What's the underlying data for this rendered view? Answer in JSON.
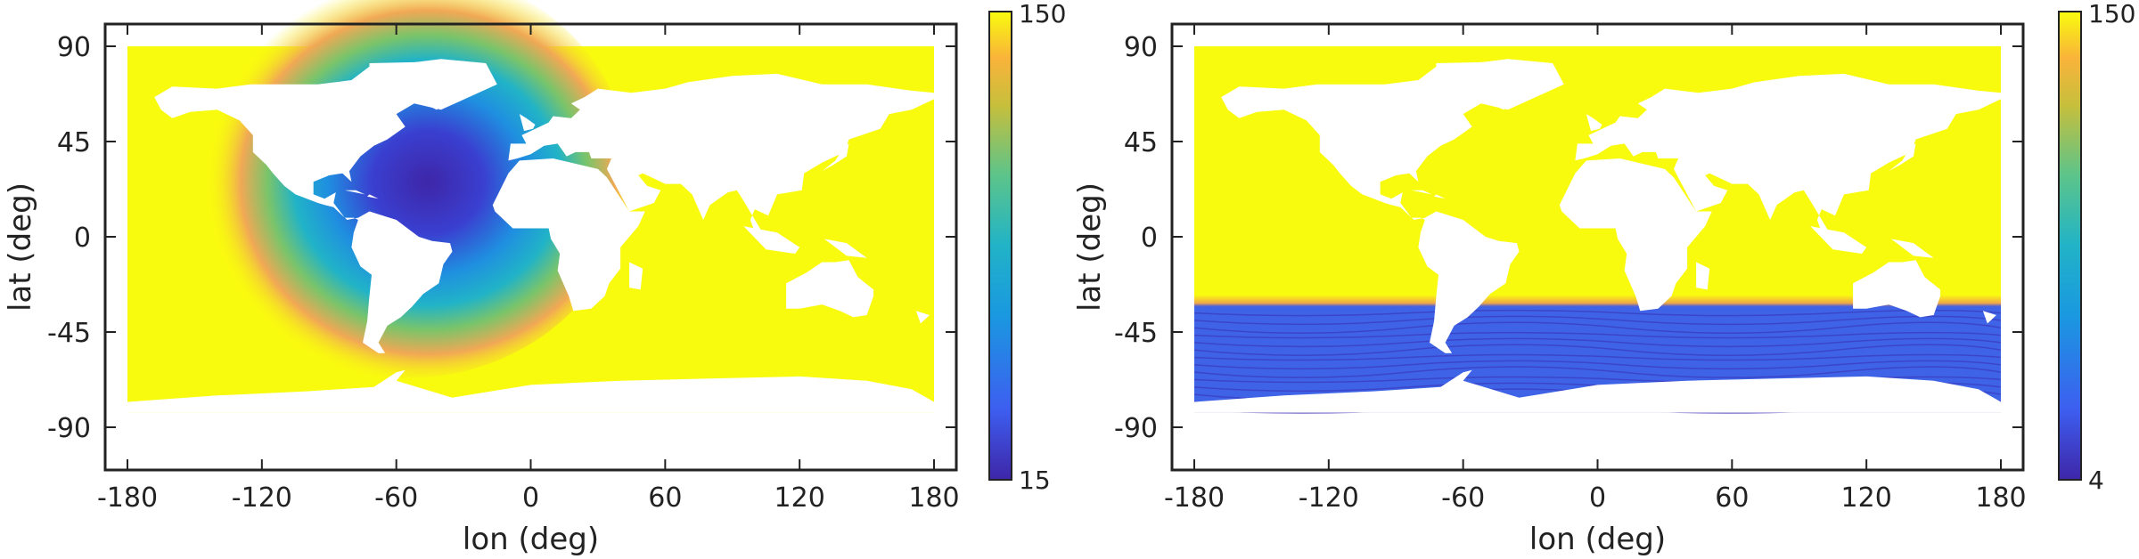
{
  "chart_data": [
    {
      "type": "heatmap",
      "xlabel": "lon (deg)",
      "ylabel": "lat (deg)",
      "xlim": [
        -180,
        180
      ],
      "ylim": [
        -90,
        90
      ],
      "xticks": [
        -180,
        -120,
        -60,
        0,
        60,
        120,
        180
      ],
      "xtick_labels": [
        "-180",
        "-120",
        "-60",
        "0",
        "60",
        "120",
        "180"
      ],
      "yticks": [
        90,
        45,
        0,
        -45,
        -90
      ],
      "ytick_labels": [
        "90",
        "45",
        "0",
        "-45",
        "-90"
      ],
      "colorbar": {
        "min": 15,
        "max": 150,
        "min_label": "15",
        "max_label": "150",
        "colormap": "parula"
      },
      "field": {
        "description_values": "ocean-only field; low values (~15) centered on the western North Atlantic near (-55, 30), increasing radially, saturating at 150 elsewhere",
        "center": [
          -55,
          30
        ],
        "value_at_center": 15,
        "value_far": 150
      }
    },
    {
      "type": "heatmap",
      "xlabel": "lon (deg)",
      "ylabel": "lat (deg)",
      "xlim": [
        -180,
        180
      ],
      "ylim": [
        -90,
        90
      ],
      "xticks": [
        -180,
        -120,
        -60,
        0,
        60,
        120,
        180
      ],
      "xtick_labels": [
        "-180",
        "-120",
        "-60",
        "0",
        "60",
        "120",
        "180"
      ],
      "yticks": [
        90,
        45,
        0,
        -45,
        -90
      ],
      "ytick_labels": [
        "90",
        "45",
        "0",
        "-45",
        "-90"
      ],
      "colorbar": {
        "min": 4,
        "max": 150,
        "min_label": "4",
        "max_label": "150",
        "colormap": "parula"
      },
      "field": {
        "north_of_lat": -30,
        "value_north": 150,
        "south_of_lat": -33,
        "value_south": 8
      }
    }
  ],
  "colors": {
    "parula_low": "#3e26a8",
    "parula_mid": "#21b3c7",
    "parula_high": "#f9fb0e",
    "land": "#ffffff",
    "frame": "#222222"
  }
}
